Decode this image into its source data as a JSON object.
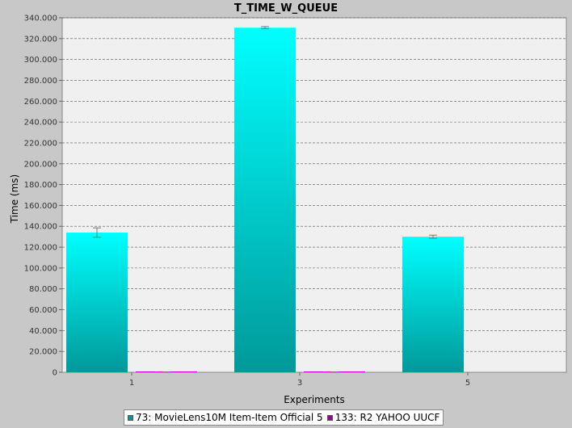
{
  "chart_data": {
    "type": "bar",
    "title": "T_TIME_W_QUEUE",
    "xlabel": "Experiments",
    "ylabel": "Time (ms)",
    "categories": [
      "1",
      "3",
      "5"
    ],
    "ylim": [
      0,
      340000
    ],
    "yticks": [
      0,
      20000,
      40000,
      60000,
      80000,
      100000,
      120000,
      140000,
      160000,
      180000,
      200000,
      220000,
      240000,
      260000,
      280000,
      300000,
      320000,
      340000
    ],
    "ytick_labels": [
      "0",
      "20.000",
      "40.000",
      "60.000",
      "80.000",
      "100.000",
      "120.000",
      "140.000",
      "160.000",
      "180.000",
      "200.000",
      "220.000",
      "240.000",
      "260.000",
      "280.000",
      "300.000",
      "320.000",
      "340.000"
    ],
    "grid": true,
    "legend_position": "bottom",
    "series": [
      {
        "name": "73: MovieLens10M Item-Item Official 5",
        "color_top": "#00ffff",
        "color_bottom": "#009999",
        "values": [
          134000,
          330500,
          130000
        ],
        "error": [
          4500,
          1000,
          1500
        ]
      },
      {
        "name": "133: R2 YAHOO UUCF",
        "color_top": "#ff00ff",
        "color_bottom": "#990099",
        "values": [
          150,
          150,
          null
        ],
        "error": [
          0,
          0,
          0
        ]
      }
    ]
  }
}
